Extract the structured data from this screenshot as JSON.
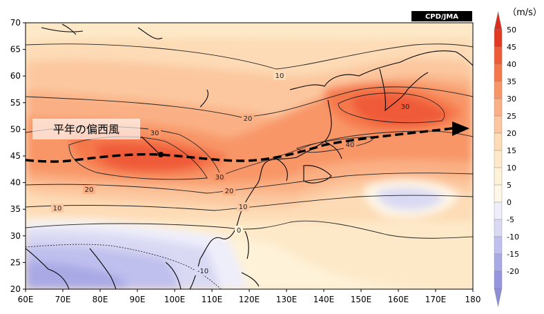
{
  "credit": "CPD/JMA",
  "unit": "（m/s）",
  "annotation": "平年の偏西風",
  "lat_ticks": [
    "70",
    "65",
    "60",
    "55",
    "50",
    "45",
    "40",
    "35",
    "30",
    "25",
    "20"
  ],
  "lon_ticks": [
    "60E",
    "70E",
    "80E",
    "90E",
    "100E",
    "110E",
    "120E",
    "130E",
    "140E",
    "150E",
    "160E",
    "170E",
    "180"
  ],
  "contour_labels": [
    "10",
    "20",
    "30",
    "30",
    "20",
    "10",
    "30",
    "40",
    "20",
    "10",
    "0",
    "-10"
  ],
  "colorbar": {
    "labels": [
      "50",
      "45",
      "40",
      "35",
      "30",
      "25",
      "20",
      "15",
      "10",
      "5",
      "0",
      "-5",
      "-10",
      "-15",
      "-20"
    ],
    "colors": [
      "#e23a22",
      "#ef5a38",
      "#f5784c",
      "#f89668",
      "#fab084",
      "#fcc79f",
      "#fddbb6",
      "#fde9c8",
      "#fef2d8",
      "#fff8e8",
      "#eeeefb",
      "#d9d9f4",
      "#c0c0ee",
      "#a9a9e6",
      "#9696de"
    ],
    "top_arrow_color": "#d7301f",
    "bottom_arrow_color": "#8d8dd8"
  },
  "jet_arrow_color": "#000000"
}
